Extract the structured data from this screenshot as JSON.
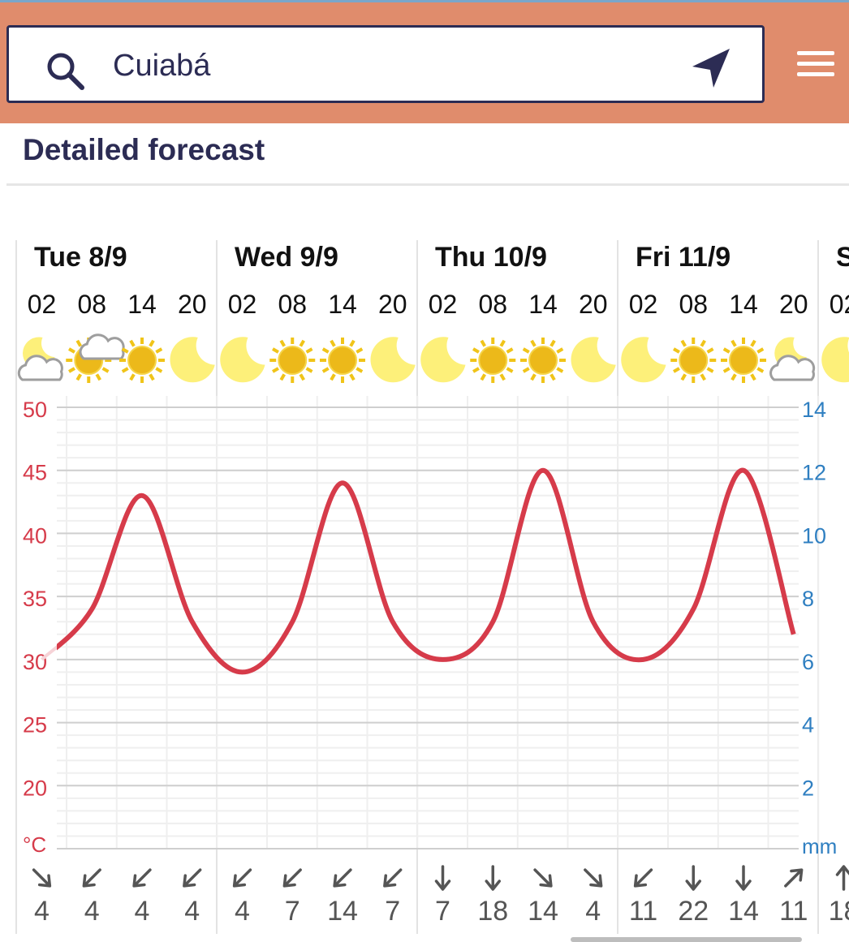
{
  "search": {
    "value": "Cuiabá"
  },
  "section": {
    "title": "Detailed forecast"
  },
  "days": [
    {
      "label": "Tue 8/9"
    },
    {
      "label": "Wed 9/9"
    },
    {
      "label": "Thu 10/9"
    },
    {
      "label": "Fri 11/9"
    },
    {
      "label": "S"
    }
  ],
  "hours": [
    "02",
    "08",
    "14",
    "20",
    "02",
    "08",
    "14",
    "20",
    "02",
    "08",
    "14",
    "20",
    "02",
    "08",
    "14",
    "20",
    "02"
  ],
  "weather_icons": [
    "partly-cloudy-night-icon",
    "partly-cloudy-day-icon",
    "sun-icon",
    "moon-icon",
    "moon-icon",
    "sun-icon",
    "sun-icon",
    "moon-icon",
    "moon-icon",
    "sun-icon",
    "sun-icon",
    "moon-icon",
    "moon-icon",
    "sun-icon",
    "sun-icon",
    "partly-cloudy-night-icon",
    "moon-icon"
  ],
  "wind": {
    "speeds": [
      "4",
      "4",
      "4",
      "4",
      "4",
      "7",
      "14",
      "7",
      "7",
      "18",
      "14",
      "4",
      "11",
      "22",
      "14",
      "11",
      "18"
    ],
    "direction_icons": [
      "arrow-south-east-icon",
      "arrow-south-west-icon",
      "arrow-south-west-icon",
      "arrow-south-west-icon",
      "arrow-south-west-icon",
      "arrow-south-west-icon",
      "arrow-south-west-icon",
      "arrow-south-west-icon",
      "arrow-south-icon",
      "arrow-south-icon",
      "arrow-south-east-icon",
      "arrow-south-east-icon",
      "arrow-south-west-icon",
      "arrow-south-icon",
      "arrow-south-icon",
      "arrow-north-east-icon",
      "arrow-north-icon"
    ]
  },
  "colors": {
    "temperature": "#d63b4a",
    "precipitation_axis": "#2f7fc1",
    "topbar": "#e08c6c",
    "navy": "#2c2c54"
  },
  "chart_data": {
    "type": "line",
    "series": [
      {
        "x": [
          "Tue 8/9 02",
          "Tue 8/9 08",
          "Tue 8/9 14",
          "Tue 8/9 20",
          "Wed 9/9 02",
          "Wed 9/9 08",
          "Wed 9/9 14",
          "Wed 9/9 20",
          "Thu 10/9 02",
          "Thu 10/9 08",
          "Thu 10/9 14",
          "Thu 10/9 20",
          "Fri 11/9 02",
          "Fri 11/9 08",
          "Fri 11/9 14",
          "Fri 11/9 20"
        ],
        "values": [
          30,
          34,
          43,
          33,
          29,
          33,
          44,
          33,
          30,
          33,
          45,
          33,
          30,
          34,
          45,
          32
        ]
      }
    ],
    "y_left": {
      "label": "°C",
      "ticks": [
        "50",
        "45",
        "40",
        "35",
        "30",
        "25",
        "20"
      ],
      "range": [
        15,
        50
      ]
    },
    "y_right": {
      "label": "mm",
      "ticks": [
        "14",
        "12",
        "10",
        "8",
        "6",
        "4",
        "2"
      ],
      "range": [
        0,
        14
      ]
    },
    "grid": true
  }
}
